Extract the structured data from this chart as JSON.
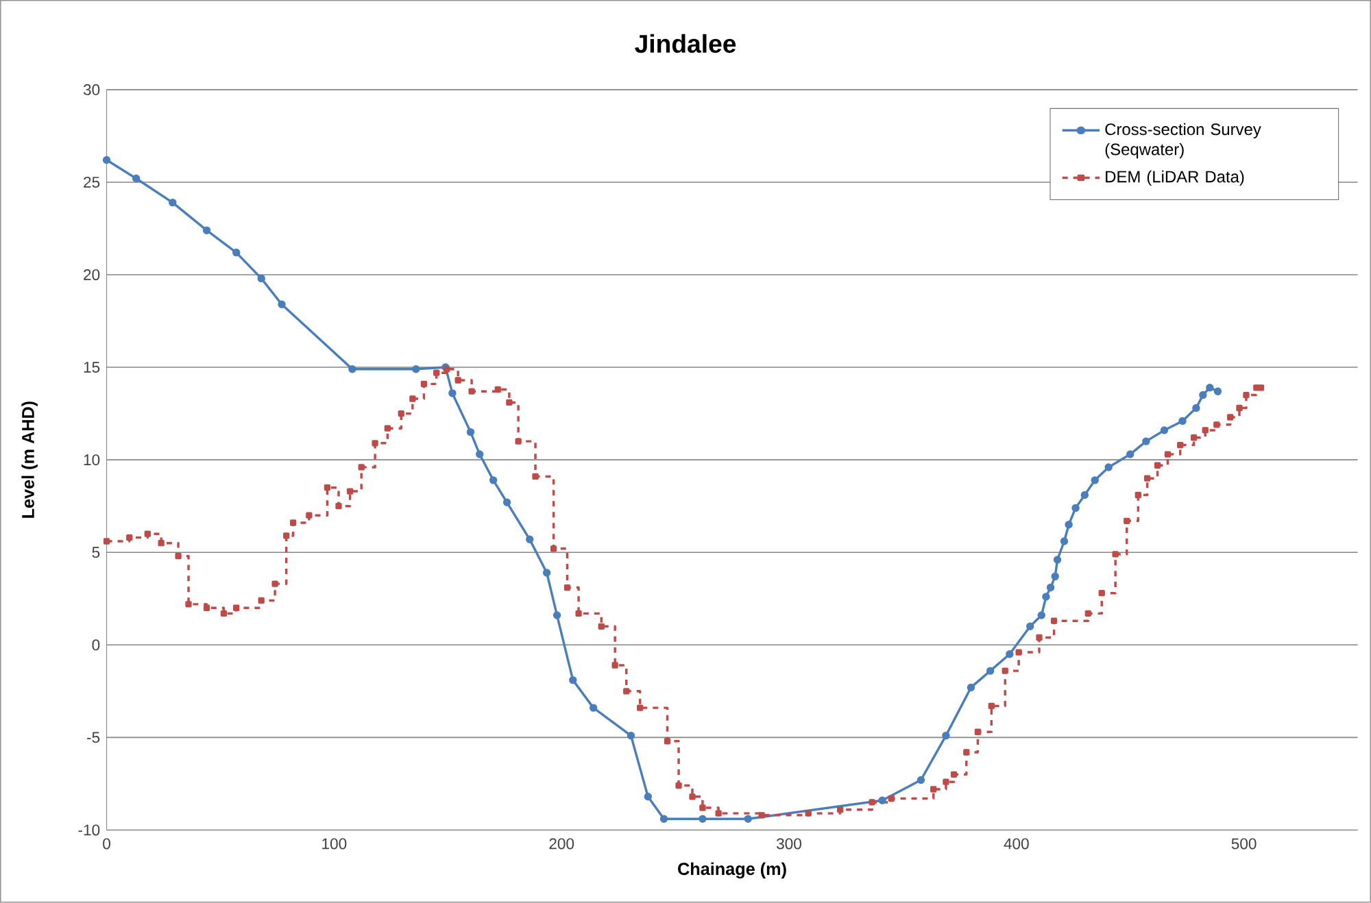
{
  "chart_data": {
    "type": "line",
    "title": "Jindalee",
    "xlabel": "Chainage (m)",
    "ylabel": "Level (m AHD)",
    "xlim": [
      0,
      550
    ],
    "xticks": [
      0,
      100,
      200,
      300,
      400,
      500
    ],
    "ylim": [
      -10,
      30
    ],
    "yticks": [
      -10,
      -5,
      0,
      5,
      10,
      15,
      20,
      25,
      30
    ],
    "grid": "y",
    "legend": "top right",
    "series": [
      {
        "name": "Cross-section Survey (Seqwater)",
        "color": "#4a7ebb",
        "marker": "circle",
        "line_style": "solid",
        "x": [
          0,
          13,
          29,
          44,
          57,
          68,
          77,
          108,
          136,
          149,
          152,
          160,
          164,
          170,
          176,
          186,
          193.5,
          198,
          205,
          214,
          230.5,
          238,
          245,
          262,
          282,
          341,
          358,
          369,
          380,
          388.5,
          397,
          406,
          411,
          413,
          415,
          417,
          418,
          421,
          423,
          426,
          430,
          434.5,
          440.5,
          450,
          457,
          465,
          473,
          479,
          482,
          485,
          488.5
        ],
        "values": [
          26.2,
          25.2,
          23.9,
          22.4,
          21.2,
          19.8,
          18.4,
          14.9,
          14.9,
          15.0,
          13.6,
          11.5,
          10.3,
          8.9,
          7.7,
          5.7,
          3.9,
          1.6,
          -1.9,
          -3.4,
          -4.9,
          -8.2,
          -9.4,
          -9.4,
          -9.4,
          -8.4,
          -7.3,
          -4.9,
          -2.3,
          -1.4,
          -0.5,
          1.0,
          1.6,
          2.6,
          3.1,
          3.7,
          4.6,
          5.6,
          6.5,
          7.4,
          8.1,
          8.9,
          9.6,
          10.3,
          11.0,
          11.6,
          12.1,
          12.8,
          13.5,
          13.9,
          13.7
        ]
      },
      {
        "name": "DEM (LiDAR Data)",
        "color": "#be4b48",
        "type": "step",
        "marker": "square",
        "line_style": "dashed",
        "x": [
          0,
          10,
          18,
          24,
          31.5,
          36,
          44,
          51.5,
          57,
          68,
          74,
          79,
          82,
          89,
          97,
          102,
          107,
          112,
          118,
          123.5,
          129.5,
          134.5,
          139.5,
          145,
          149.5,
          154.5,
          160.5,
          172,
          177,
          181,
          188.5,
          196.5,
          202.5,
          207.5,
          217.5,
          223.5,
          228.5,
          234.5,
          246.5,
          251.5,
          257.5,
          262,
          269,
          288,
          308.5,
          322.5,
          336.5,
          345,
          363.5,
          369,
          372.5,
          378,
          383,
          389,
          395,
          401,
          410,
          416.5,
          431.5,
          437.5,
          443.5,
          448.5,
          453.5,
          457.5,
          462,
          466.5,
          472,
          478,
          483,
          488,
          494,
          498,
          501,
          505.5,
          507.5
        ],
        "values": [
          5.6,
          5.8,
          6.0,
          5.5,
          4.8,
          2.2,
          2.0,
          1.7,
          2.0,
          2.4,
          3.3,
          5.9,
          6.6,
          7.0,
          8.5,
          7.5,
          8.3,
          9.6,
          10.9,
          11.7,
          12.5,
          13.3,
          14.1,
          14.7,
          14.9,
          14.3,
          13.7,
          13.8,
          13.1,
          11.0,
          9.1,
          5.2,
          3.1,
          1.7,
          1.0,
          -1.1,
          -2.5,
          -3.4,
          -5.2,
          -7.6,
          -8.2,
          -8.8,
          -9.1,
          -9.2,
          -9.1,
          -8.9,
          -8.5,
          -8.3,
          -7.8,
          -7.4,
          -7.0,
          -5.8,
          -4.7,
          -3.3,
          -1.4,
          -0.4,
          0.4,
          1.3,
          1.7,
          2.8,
          4.9,
          6.7,
          8.1,
          9.0,
          9.7,
          10.3,
          10.8,
          11.2,
          11.6,
          11.9,
          12.3,
          12.8,
          13.5,
          13.9,
          13.9
        ]
      }
    ]
  }
}
